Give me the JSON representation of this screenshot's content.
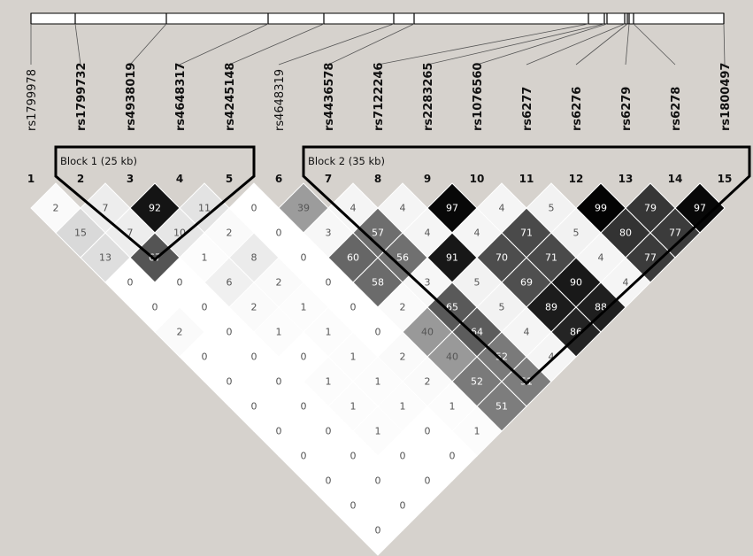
{
  "snps": [
    {
      "index": "1",
      "name": "rs1799978",
      "bold": false
    },
    {
      "index": "2",
      "name": "rs1799732",
      "bold": true
    },
    {
      "index": "3",
      "name": "rs4938019",
      "bold": true
    },
    {
      "index": "4",
      "name": "rs4648317",
      "bold": true
    },
    {
      "index": "5",
      "name": "rs4245148",
      "bold": true
    },
    {
      "index": "6",
      "name": "rs4648319",
      "bold": false
    },
    {
      "index": "7",
      "name": "rs4436578",
      "bold": true
    },
    {
      "index": "8",
      "name": "rs7122246",
      "bold": true
    },
    {
      "index": "9",
      "name": "rs2283265",
      "bold": true
    },
    {
      "index": "10",
      "name": "rs1076560",
      "bold": true
    },
    {
      "index": "11",
      "name": "rs6277",
      "bold": true
    },
    {
      "index": "12",
      "name": "rs6276",
      "bold": true
    },
    {
      "index": "13",
      "name": "rs6279",
      "bold": true
    },
    {
      "index": "14",
      "name": "rs6278",
      "bold": true
    },
    {
      "index": "15",
      "name": "rs1800497",
      "bold": true
    }
  ],
  "blocks": [
    {
      "label": "Block 1 (25 kb)",
      "first": 2,
      "last": 5
    },
    {
      "label": "Block 2 (35 kb)",
      "first": 7,
      "last": 15
    }
  ],
  "ld_rows": [
    [
      2,
      7,
      92,
      11,
      0,
      39,
      4,
      4,
      97,
      4,
      5,
      99,
      79,
      97
    ],
    [
      15,
      7,
      10,
      2,
      0,
      3,
      57,
      4,
      4,
      71,
      5,
      80,
      77
    ],
    [
      13,
      67,
      1,
      8,
      0,
      60,
      56,
      91,
      70,
      71,
      4,
      77
    ],
    [
      0,
      0,
      6,
      2,
      0,
      58,
      3,
      5,
      69,
      90,
      4
    ],
    [
      0,
      0,
      2,
      1,
      0,
      2,
      65,
      5,
      89,
      88
    ],
    [
      2,
      0,
      1,
      1,
      0,
      40,
      64,
      4,
      86
    ],
    [
      0,
      0,
      0,
      1,
      2,
      40,
      52,
      4
    ],
    [
      0,
      0,
      1,
      1,
      2,
      52,
      51
    ],
    [
      0,
      0,
      1,
      1,
      1,
      51
    ],
    [
      0,
      0,
      1,
      0,
      1
    ],
    [
      0,
      0,
      0,
      0
    ],
    [
      0,
      0,
      0
    ],
    [
      0,
      0
    ],
    [
      0
    ]
  ],
  "legend_note": "",
  "colors": {
    "background": "#d6d2cd",
    "outline": "#000000"
  }
}
